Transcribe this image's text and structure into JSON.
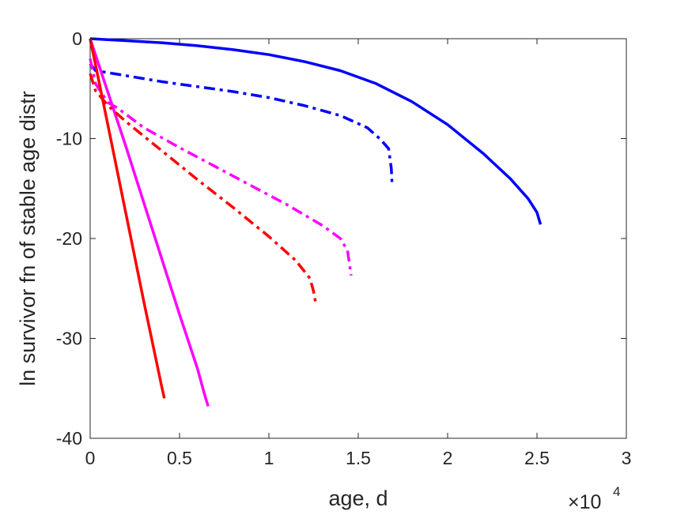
{
  "chart_data": {
    "type": "line",
    "title": "",
    "xlabel": "age, d",
    "ylabel": "ln survivor fn of stable age distr",
    "x_multiplier_label": "×10",
    "x_multiplier_exponent": "4",
    "xlim": [
      0,
      30000
    ],
    "ylim": [
      -40,
      0
    ],
    "x_ticks": [
      0,
      5000,
      10000,
      15000,
      20000,
      25000,
      30000
    ],
    "x_tick_labels": [
      "0",
      "0.5",
      "1",
      "1.5",
      "2",
      "2.5",
      "3"
    ],
    "y_ticks": [
      0,
      -10,
      -20,
      -30,
      -40
    ],
    "y_tick_labels": [
      "0",
      "-10",
      "-20",
      "-30",
      "-40"
    ],
    "grid": false,
    "legend": "none",
    "series": [
      {
        "color": "#0000ff",
        "style": "solid",
        "points": [
          [
            0,
            0
          ],
          [
            2000,
            -0.2
          ],
          [
            4000,
            -0.4
          ],
          [
            6000,
            -0.7
          ],
          [
            8000,
            -1.1
          ],
          [
            10000,
            -1.6
          ],
          [
            12000,
            -2.3
          ],
          [
            14000,
            -3.2
          ],
          [
            16000,
            -4.5
          ],
          [
            18000,
            -6.3
          ],
          [
            20000,
            -8.6
          ],
          [
            22000,
            -11.5
          ],
          [
            23500,
            -14.0
          ],
          [
            24500,
            -16.0
          ],
          [
            25000,
            -17.4
          ],
          [
            25200,
            -18.6
          ]
        ]
      },
      {
        "color": "#0000ff",
        "style": "dashdot",
        "points": [
          [
            0,
            -2.5
          ],
          [
            300,
            -3.2
          ],
          [
            1000,
            -3.4
          ],
          [
            2000,
            -3.7
          ],
          [
            4000,
            -4.3
          ],
          [
            6000,
            -4.8
          ],
          [
            8000,
            -5.3
          ],
          [
            10000,
            -5.9
          ],
          [
            12000,
            -6.7
          ],
          [
            14000,
            -7.7
          ],
          [
            15500,
            -8.9
          ],
          [
            16200,
            -10.0
          ],
          [
            16700,
            -11.0
          ],
          [
            16850,
            -13.0
          ],
          [
            16900,
            -14.8
          ]
        ]
      },
      {
        "color": "#ff00ff",
        "style": "solid",
        "points": [
          [
            0,
            0
          ],
          [
            1000,
            -5.4
          ],
          [
            2000,
            -10.8
          ],
          [
            3000,
            -16.4
          ],
          [
            4000,
            -22.0
          ],
          [
            5000,
            -27.6
          ],
          [
            6000,
            -33.0
          ],
          [
            6400,
            -35.6
          ],
          [
            6600,
            -36.8
          ]
        ]
      },
      {
        "color": "#ff00ff",
        "style": "dashdot",
        "points": [
          [
            0,
            -2.0
          ],
          [
            300,
            -4.5
          ],
          [
            1000,
            -6.4
          ],
          [
            1500,
            -6.9
          ],
          [
            3000,
            -8.9
          ],
          [
            5000,
            -10.9
          ],
          [
            7000,
            -12.8
          ],
          [
            9000,
            -14.7
          ],
          [
            11000,
            -16.6
          ],
          [
            13000,
            -18.7
          ],
          [
            14000,
            -20.0
          ],
          [
            14400,
            -21.2
          ],
          [
            14600,
            -23.7
          ]
        ]
      },
      {
        "color": "#ff0000",
        "style": "solid",
        "points": [
          [
            0,
            0
          ],
          [
            1000,
            -8.7
          ],
          [
            2000,
            -17.5
          ],
          [
            3000,
            -26.3
          ],
          [
            4000,
            -34.8
          ],
          [
            4150,
            -36.0
          ]
        ]
      },
      {
        "color": "#ff0000",
        "style": "dashdot",
        "points": [
          [
            0,
            -3.5
          ],
          [
            300,
            -5.2
          ],
          [
            1000,
            -6.7
          ],
          [
            2000,
            -8.3
          ],
          [
            4000,
            -11.2
          ],
          [
            6000,
            -14.1
          ],
          [
            8000,
            -16.9
          ],
          [
            10000,
            -19.8
          ],
          [
            11500,
            -22.2
          ],
          [
            12300,
            -24.0
          ],
          [
            12500,
            -25.3
          ],
          [
            12600,
            -26.3
          ]
        ]
      }
    ]
  }
}
